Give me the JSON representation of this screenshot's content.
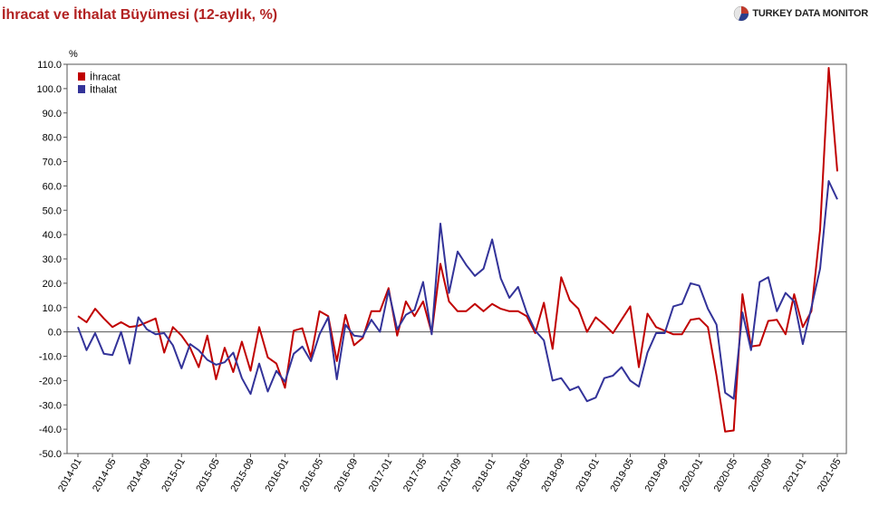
{
  "title": "İhracat ve İthalat Büyümesi (12-aylık, %)",
  "brand": {
    "name": "TURKEY DATA MONITOR",
    "logo_icon": "pie-chart-logo-icon",
    "colors": [
      "#c0392b",
      "#2c3e8c",
      "#e6e6e6"
    ]
  },
  "chart_data": {
    "type": "line",
    "unit_label": "%",
    "ylim": [
      -50,
      110
    ],
    "yticks": [
      110,
      100,
      90,
      80,
      70,
      60,
      50,
      40,
      30,
      20,
      10,
      0,
      -10,
      -20,
      -30,
      -40,
      -50
    ],
    "ytick_labels": [
      "110.0",
      "100.0",
      "90.0",
      "80.0",
      "70.0",
      "60.0",
      "50.0",
      "40.0",
      "30.0",
      "20.0",
      "10.0",
      "0.0",
      "-10.0",
      "-20.0",
      "-30.0",
      "-40.0",
      "-50.0"
    ],
    "xtick_labels": [
      "2014-01",
      "2014-05",
      "2014-09",
      "2015-01",
      "2015-05",
      "2015-09",
      "2016-01",
      "2016-05",
      "2016-09",
      "2017-01",
      "2017-05",
      "2017-09",
      "2018-01",
      "2018-05",
      "2018-09",
      "2019-01",
      "2019-05",
      "2019-09",
      "2020-01",
      "2020-05",
      "2020-09",
      "2021-01",
      "2021-05"
    ],
    "x": [
      "2014-01",
      "2014-02",
      "2014-03",
      "2014-04",
      "2014-05",
      "2014-06",
      "2014-07",
      "2014-08",
      "2014-09",
      "2014-10",
      "2014-11",
      "2014-12",
      "2015-01",
      "2015-02",
      "2015-03",
      "2015-04",
      "2015-05",
      "2015-06",
      "2015-07",
      "2015-08",
      "2015-09",
      "2015-10",
      "2015-11",
      "2015-12",
      "2016-01",
      "2016-02",
      "2016-03",
      "2016-04",
      "2016-05",
      "2016-06",
      "2016-07",
      "2016-08",
      "2016-09",
      "2016-10",
      "2016-11",
      "2016-12",
      "2017-01",
      "2017-02",
      "2017-03",
      "2017-04",
      "2017-05",
      "2017-06",
      "2017-07",
      "2017-08",
      "2017-09",
      "2017-10",
      "2017-11",
      "2017-12",
      "2018-01",
      "2018-02",
      "2018-03",
      "2018-04",
      "2018-05",
      "2018-06",
      "2018-07",
      "2018-08",
      "2018-09",
      "2018-10",
      "2018-11",
      "2018-12",
      "2019-01",
      "2019-02",
      "2019-03",
      "2019-04",
      "2019-05",
      "2019-06",
      "2019-07",
      "2019-08",
      "2019-09",
      "2019-10",
      "2019-11",
      "2019-12",
      "2020-01",
      "2020-02",
      "2020-03",
      "2020-04",
      "2020-05",
      "2020-06",
      "2020-07",
      "2020-08",
      "2020-09",
      "2020-10",
      "2020-11",
      "2020-12",
      "2021-01",
      "2021-02",
      "2021-03",
      "2021-04",
      "2021-05"
    ],
    "series": [
      {
        "name": "İhracat",
        "color": "#c00000",
        "values": [
          6.5,
          4,
          9.5,
          5.5,
          2,
          4,
          2,
          2.5,
          4,
          5.5,
          -8.5,
          2,
          -1.5,
          -6.5,
          -14.5,
          -1.5,
          -19.5,
          -6.5,
          -16.5,
          -4,
          -16,
          2,
          -10.5,
          -13,
          -23,
          0.5,
          1.5,
          -10.5,
          8.5,
          6.5,
          -12,
          7,
          -5.5,
          -2.5,
          8.5,
          8.5,
          18,
          -1.5,
          12.5,
          6.5,
          12.5,
          -0.5,
          28,
          12.5,
          8.5,
          8.5,
          11.5,
          8.5,
          11.5,
          9.5,
          8.5,
          8.5,
          6.5,
          -0.5,
          12,
          -7,
          22.5,
          13,
          9.5,
          0,
          6,
          3,
          -0.5,
          5,
          10.5,
          -14.5,
          7.5,
          2,
          0.5,
          -1,
          -1,
          5,
          5.5,
          2,
          -18,
          -41,
          -40.5,
          15.5,
          -6,
          -5.5,
          4.5,
          5,
          -1,
          15.5,
          2,
          8.5,
          42,
          108.5,
          66
        ]
      },
      {
        "name": "İthalat",
        "color": "#333399",
        "values": [
          2,
          -7.5,
          -0.5,
          -9,
          -9.5,
          0,
          -13,
          6,
          1,
          -1,
          -0.5,
          -5.5,
          -15,
          -5,
          -7.5,
          -11.5,
          -13.5,
          -12.5,
          -8.5,
          -19,
          -25.5,
          -13,
          -24.5,
          -16,
          -20.5,
          -9,
          -6,
          -12,
          -1,
          6,
          -19.5,
          3,
          -1.5,
          -2,
          5,
          0,
          17,
          1,
          7,
          9,
          20.5,
          -1,
          44.5,
          16,
          33,
          27.5,
          23,
          26,
          38,
          22,
          14,
          18.5,
          8,
          0.5,
          -3.5,
          -20,
          -19,
          -24,
          -22.5,
          -28.5,
          -27,
          -19,
          -18,
          -14.5,
          -20,
          -22.5,
          -8.5,
          -0.5,
          -0.5,
          10.5,
          11.5,
          20,
          19,
          9.5,
          3,
          -25,
          -27.5,
          8,
          -7.5,
          20.5,
          22.5,
          8.5,
          16,
          12.5,
          -5,
          10,
          26,
          62,
          54.5
        ]
      }
    ],
    "legend_position": "top-left",
    "grid": false,
    "zero_line": true
  }
}
